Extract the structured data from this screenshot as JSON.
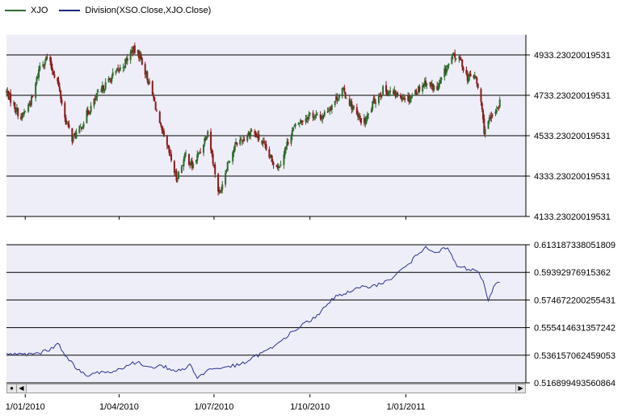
{
  "legend": [
    {
      "label": "XJO",
      "color": "#2e6b2e"
    },
    {
      "label": "Division(XSO.Close,XJO.Close)",
      "color": "#1c2480"
    }
  ],
  "colors": {
    "up": "#2e6b2e",
    "down": "#8b1a1a",
    "ratio_line": "#2a3390",
    "panel_bg": "#eeeef8",
    "grid": "#000000"
  },
  "chart_data": [
    {
      "type": "candlestick",
      "series_name": "XJO",
      "x_range": [
        "2009-12-14",
        "2011-04-26"
      ],
      "ylim": [
        4133.23020019531,
        5033.23020019531
      ],
      "y_ticks": [
        4933.23020019531,
        4733.23020019531,
        4533.23020019531,
        4333.23020019531,
        4133.23020019531
      ],
      "y_tick_labels": [
        "4933.23020019531",
        "4733.23020019531",
        "4533.23020019531",
        "4333.23020019531",
        "4133.23020019531"
      ],
      "grid": true,
      "trend": [
        [
          "2009-12-14",
          4750
        ],
        [
          "2009-12-28",
          4620
        ],
        [
          "2010-01-08",
          4720
        ],
        [
          "2010-01-15",
          4880
        ],
        [
          "2010-01-22",
          4920
        ],
        [
          "2010-02-01",
          4800
        ],
        [
          "2010-02-08",
          4620
        ],
        [
          "2010-02-15",
          4520
        ],
        [
          "2010-02-22",
          4560
        ],
        [
          "2010-03-01",
          4640
        ],
        [
          "2010-03-10",
          4720
        ],
        [
          "2010-03-18",
          4780
        ],
        [
          "2010-03-26",
          4830
        ],
        [
          "2010-04-05",
          4880
        ],
        [
          "2010-04-14",
          4960
        ],
        [
          "2010-04-21",
          4930
        ],
        [
          "2010-04-28",
          4820
        ],
        [
          "2010-05-05",
          4700
        ],
        [
          "2010-05-10",
          4580
        ],
        [
          "2010-05-20",
          4430
        ],
        [
          "2010-05-26",
          4320
        ],
        [
          "2010-06-04",
          4440
        ],
        [
          "2010-06-10",
          4380
        ],
        [
          "2010-06-18",
          4460
        ],
        [
          "2010-06-25",
          4560
        ],
        [
          "2010-07-02",
          4350
        ],
        [
          "2010-07-06",
          4240
        ],
        [
          "2010-07-14",
          4400
        ],
        [
          "2010-07-23",
          4500
        ],
        [
          "2010-07-30",
          4520
        ],
        [
          "2010-08-06",
          4560
        ],
        [
          "2010-08-16",
          4500
        ],
        [
          "2010-08-24",
          4420
        ],
        [
          "2010-09-01",
          4380
        ],
        [
          "2010-09-06",
          4450
        ],
        [
          "2010-09-14",
          4560
        ],
        [
          "2010-09-21",
          4600
        ],
        [
          "2010-10-01",
          4640
        ],
        [
          "2010-10-11",
          4620
        ],
        [
          "2010-10-21",
          4680
        ],
        [
          "2010-11-01",
          4760
        ],
        [
          "2010-11-08",
          4700
        ],
        [
          "2010-11-16",
          4620
        ],
        [
          "2010-11-23",
          4600
        ],
        [
          "2010-12-01",
          4700
        ],
        [
          "2010-12-10",
          4760
        ],
        [
          "2010-12-20",
          4740
        ],
        [
          "2011-01-04",
          4720
        ],
        [
          "2011-01-12",
          4760
        ],
        [
          "2011-01-20",
          4800
        ],
        [
          "2011-01-31",
          4760
        ],
        [
          "2011-02-08",
          4860
        ],
        [
          "2011-02-16",
          4930
        ],
        [
          "2011-02-23",
          4900
        ],
        [
          "2011-03-01",
          4820
        ],
        [
          "2011-03-08",
          4830
        ],
        [
          "2011-03-14",
          4700
        ],
        [
          "2011-03-17",
          4560
        ],
        [
          "2011-03-24",
          4620
        ],
        [
          "2011-04-01",
          4700
        ]
      ]
    },
    {
      "type": "line",
      "series_name": "Division(XSO.Close,XJO.Close)",
      "x_range": [
        "2009-12-14",
        "2011-04-26"
      ],
      "ylim": [
        0.516899493560864,
        0.613187338051809
      ],
      "y_ticks": [
        0.613187338051809,
        0.59392976915362,
        0.574672200255431,
        0.555414631357242,
        0.536157062459053,
        0.516899493560864
      ],
      "y_tick_labels": [
        "0.613187338051809",
        "0.59392976915362",
        "0.574672200255431",
        "0.555414631357242",
        "0.536157062459053",
        "0.516899493560864"
      ],
      "grid": true,
      "points": [
        [
          "2009-12-14",
          0.5375
        ],
        [
          "2009-12-24",
          0.5365
        ],
        [
          "2010-01-08",
          0.537
        ],
        [
          "2010-01-22",
          0.539
        ],
        [
          "2010-02-01",
          0.5445
        ],
        [
          "2010-02-10",
          0.535
        ],
        [
          "2010-02-20",
          0.526
        ],
        [
          "2010-03-01",
          0.5215
        ],
        [
          "2010-03-15",
          0.525
        ],
        [
          "2010-03-25",
          0.524
        ],
        [
          "2010-04-08",
          0.529
        ],
        [
          "2010-04-18",
          0.531
        ],
        [
          "2010-04-30",
          0.528
        ],
        [
          "2010-05-12",
          0.529
        ],
        [
          "2010-05-21",
          0.5255
        ],
        [
          "2010-05-30",
          0.5255
        ],
        [
          "2010-06-08",
          0.53
        ],
        [
          "2010-06-15",
          0.52
        ],
        [
          "2010-06-25",
          0.526
        ],
        [
          "2010-07-05",
          0.527
        ],
        [
          "2010-07-15",
          0.5285
        ],
        [
          "2010-07-25",
          0.529
        ],
        [
          "2010-08-05",
          0.533
        ],
        [
          "2010-08-16",
          0.538
        ],
        [
          "2010-08-26",
          0.541
        ],
        [
          "2010-09-06",
          0.548
        ],
        [
          "2010-09-16",
          0.553
        ],
        [
          "2010-09-26",
          0.559
        ],
        [
          "2010-10-06",
          0.562
        ],
        [
          "2010-10-16",
          0.57
        ],
        [
          "2010-10-26",
          0.578
        ],
        [
          "2010-11-08",
          0.58
        ],
        [
          "2010-11-18",
          0.583
        ],
        [
          "2010-11-30",
          0.585
        ],
        [
          "2010-12-10",
          0.586
        ],
        [
          "2010-12-22",
          0.592
        ],
        [
          "2011-01-04",
          0.6
        ],
        [
          "2011-01-12",
          0.606
        ],
        [
          "2011-01-20",
          0.612
        ],
        [
          "2011-01-31",
          0.608
        ],
        [
          "2011-02-10",
          0.611
        ],
        [
          "2011-02-19",
          0.598
        ],
        [
          "2011-03-02",
          0.596
        ],
        [
          "2011-03-10",
          0.595
        ],
        [
          "2011-03-16",
          0.588
        ],
        [
          "2011-03-21",
          0.574
        ],
        [
          "2011-03-26",
          0.584
        ],
        [
          "2011-04-01",
          0.587
        ]
      ]
    }
  ],
  "x_axis": {
    "ticks": [
      "2010-01-01",
      "2010-04-01",
      "2010-07-01",
      "2010-10-01",
      "2011-01-01"
    ],
    "labels": [
      "1/01/2010",
      "1/04/2010",
      "1/07/2010",
      "1/10/2010",
      "1/01/2011"
    ]
  },
  "scrollbar": {
    "left_icon": "left-arrow-icon",
    "right_icon": "right-arrow-icon",
    "menu_icon": "scroll-menu-icon"
  }
}
